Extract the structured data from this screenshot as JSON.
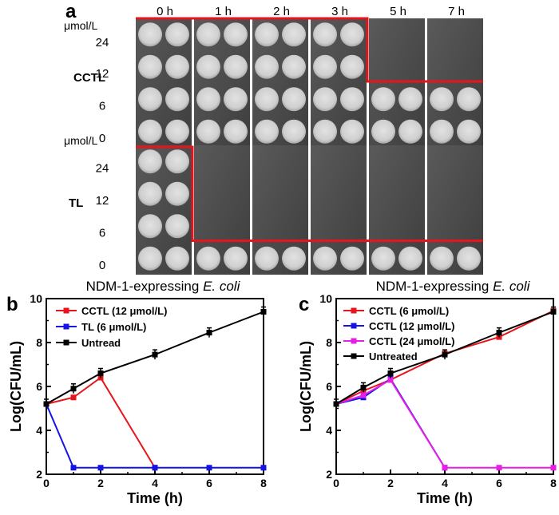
{
  "panel_a": {
    "label": "a",
    "time_labels": [
      "0 h",
      "1 h",
      "2 h",
      "3 h",
      "5 h",
      "7 h"
    ],
    "conc_unit": "μmol/L",
    "conc_labels": [
      "24",
      "12",
      "6",
      "0"
    ],
    "groups": [
      {
        "name": "CCTL",
        "growth": [
          [
            1,
            1,
            1,
            1,
            0,
            0
          ],
          [
            1,
            1,
            1,
            1,
            0,
            0
          ],
          [
            1,
            1,
            1,
            1,
            1,
            1
          ],
          [
            1,
            1,
            1,
            1,
            1,
            1
          ]
        ]
      },
      {
        "name": "TL",
        "growth": [
          [
            1,
            0,
            0,
            0,
            0,
            0
          ],
          [
            1,
            0,
            0,
            0,
            0,
            0
          ],
          [
            1,
            0,
            0,
            0,
            0,
            0
          ],
          [
            1,
            1,
            1,
            1,
            1,
            1
          ]
        ]
      }
    ],
    "boundary_color": "#e8141b"
  },
  "chart_data": [
    {
      "panel": "b",
      "type": "line",
      "title": "NDM-1-expressing",
      "title_italic": "E. coli",
      "xlabel": "Time (h)",
      "ylabel": "Log(CFU/mL)",
      "xlim": [
        0,
        8
      ],
      "ylim": [
        2,
        10
      ],
      "xticks": [
        "0",
        "2",
        "4",
        "6",
        "8"
      ],
      "yticks": [
        "2",
        "4",
        "6",
        "8",
        "10"
      ],
      "series": [
        {
          "name": "CCTL (12 μmol/L)",
          "color": "#e8141b",
          "x": [
            0,
            1,
            2,
            4
          ],
          "values": [
            5.2,
            5.5,
            6.4,
            2.3
          ]
        },
        {
          "name": "TL (6 μmol/L)",
          "color": "#1414e6",
          "x": [
            0,
            1,
            2,
            4,
            6,
            8
          ],
          "values": [
            5.2,
            2.3,
            2.3,
            2.3,
            2.3,
            2.3
          ]
        },
        {
          "name": "Untread",
          "color": "#000000",
          "x": [
            0,
            1,
            2,
            4,
            6,
            8
          ],
          "values": [
            5.2,
            5.9,
            6.6,
            7.45,
            8.45,
            9.4
          ]
        }
      ]
    },
    {
      "panel": "c",
      "type": "line",
      "title": "NDM-1-expressing",
      "title_italic": "E. coli",
      "xlabel": "Time (h)",
      "ylabel": "Log(CFU/mL)",
      "xlim": [
        0,
        8
      ],
      "ylim": [
        2,
        10
      ],
      "xticks": [
        "0",
        "2",
        "4",
        "6",
        "8"
      ],
      "yticks": [
        "2",
        "4",
        "6",
        "8",
        "10"
      ],
      "series": [
        {
          "name": "CCTL (6 μmol/L)",
          "color": "#e8141b",
          "x": [
            0,
            1,
            2,
            4,
            6,
            8
          ],
          "values": [
            5.2,
            5.8,
            6.3,
            7.5,
            8.25,
            9.45
          ]
        },
        {
          "name": "CCTL (12 μmol/L)",
          "color": "#1414e6",
          "x": [
            0,
            1,
            2,
            4
          ],
          "values": [
            5.2,
            5.5,
            6.35,
            2.3
          ]
        },
        {
          "name": "CCTL (24 μmol/L)",
          "color": "#e61ee6",
          "x": [
            0,
            1,
            2,
            4,
            6,
            8
          ],
          "values": [
            5.2,
            5.6,
            6.3,
            2.3,
            2.3,
            2.3
          ]
        },
        {
          "name": "Untreated",
          "color": "#000000",
          "x": [
            0,
            1,
            2,
            4,
            6,
            8
          ],
          "values": [
            5.2,
            5.95,
            6.6,
            7.45,
            8.45,
            9.4
          ]
        }
      ]
    }
  ]
}
